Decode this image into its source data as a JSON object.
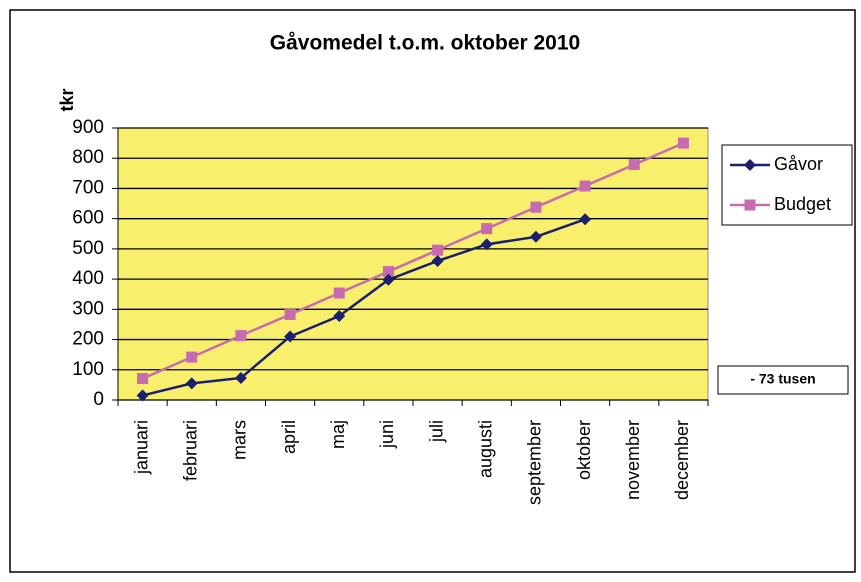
{
  "chart_data": {
    "type": "line",
    "title": "Gåvomedel t.o.m. oktober 2010",
    "y_label": "tkr",
    "categories": [
      "januari",
      "februari",
      "mars",
      "april",
      "maj",
      "juni",
      "juli",
      "augusti",
      "september",
      "oktober",
      "november",
      "december"
    ],
    "series": [
      {
        "name": "Gåvor",
        "color": "#1a1f6e",
        "marker": "diamond",
        "values": [
          15,
          55,
          73,
          210,
          278,
          398,
          460,
          515,
          540,
          598,
          null,
          null
        ]
      },
      {
        "name": "Budget",
        "color": "#c86ab0",
        "marker": "square",
        "values": [
          71,
          142,
          213,
          283,
          354,
          425,
          496,
          567,
          638,
          708,
          779,
          850
        ]
      }
    ],
    "ylim": [
      0,
      900
    ],
    "yticks": [
      0,
      100,
      200,
      300,
      400,
      500,
      600,
      700,
      800,
      900
    ],
    "grid": true,
    "legend": "right",
    "annotation": "- 73 tusen",
    "plot_background": "#f8f06c"
  }
}
